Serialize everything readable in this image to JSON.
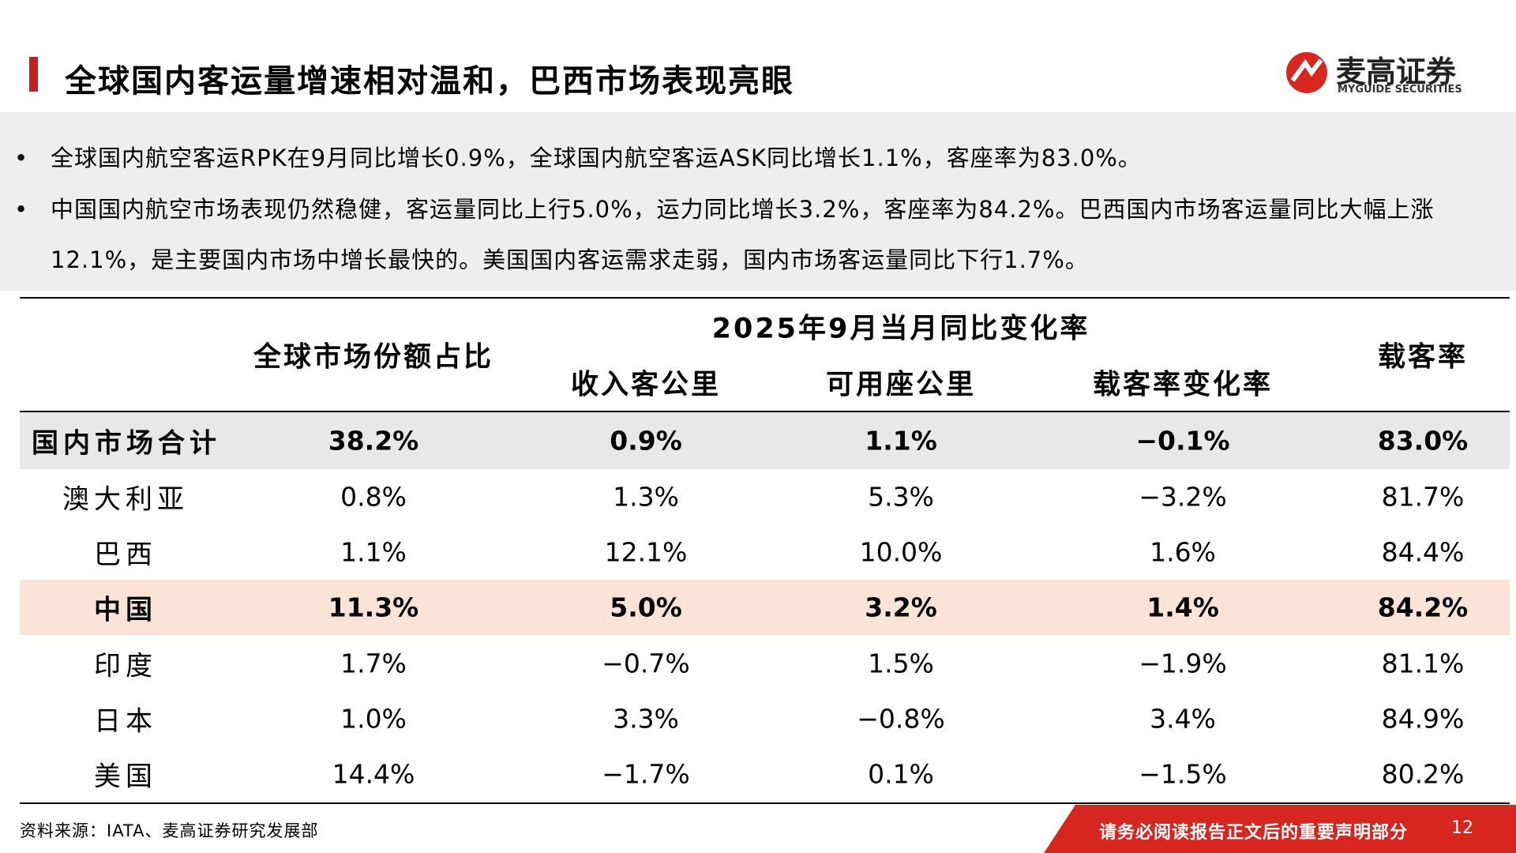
{
  "header": {
    "title": "全球国内客运量增速相对温和，巴西市场表现亮眼",
    "logo_cn": "麦高证券",
    "logo_en": "MYGUIDE SECURITIES"
  },
  "bullets": [
    "全球国内航空客运RPK在9月同比增长0.9%，全球国内航空客运ASK同比增长1.1%，客座率为83.0%。",
    "中国国内航空市场表现仍然稳健，客运量同比上行5.0%，运力同比增长3.2%，客座率为84.2%。巴西国内市场客运量同比大幅上涨12.1%，是主要国内市场中增长最快的。美国国内客运需求走弱，国内市场客运量同比下行1.7%。"
  ],
  "table": {
    "group_header": "2025年9月当月同比变化率",
    "headers": [
      "全球市场份额占比",
      "收入客公里",
      "可用座公里",
      "载客率变化率",
      "载客率"
    ],
    "rows": [
      [
        "国内市场合计",
        "38.2%",
        "0.9%",
        "1.1%",
        "−0.1%",
        "83.0%"
      ],
      [
        "澳大利亚",
        "0.8%",
        "1.3%",
        "5.3%",
        "−3.2%",
        "81.7%"
      ],
      [
        "巴西",
        "1.1%",
        "12.1%",
        "10.0%",
        "1.6%",
        "84.4%"
      ],
      [
        "中国",
        "11.3%",
        "5.0%",
        "3.2%",
        "1.4%",
        "84.2%"
      ],
      [
        "印度",
        "1.7%",
        "−0.7%",
        "1.5%",
        "−1.9%",
        "81.1%"
      ],
      [
        "日本",
        "1.0%",
        "3.3%",
        "−0.8%",
        "3.4%",
        "84.9%"
      ],
      [
        "美国",
        "14.4%",
        "−1.7%",
        "0.1%",
        "−1.5%",
        "80.2%"
      ]
    ]
  },
  "footer": {
    "source": "资料来源：IATA、麦高证券研究发展部",
    "disclaimer": "请务必阅读报告正文后的重要声明部分",
    "page": "12"
  }
}
